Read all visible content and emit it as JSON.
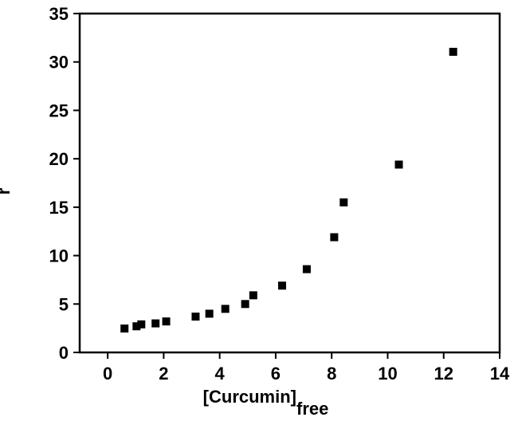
{
  "chart_data": {
    "type": "scatter",
    "xlabel": "[Curcumin]",
    "xlabel_subscript": "free",
    "ylabel": "r",
    "x": [
      0.6,
      1.03,
      1.2,
      1.71,
      2.09,
      3.14,
      3.63,
      4.2,
      4.91,
      5.2,
      6.23,
      7.11,
      8.09,
      8.43,
      10.4,
      12.34
    ],
    "series": [
      {
        "color": "#000000",
        "values": [
          2.47,
          2.7,
          2.9,
          3.0,
          3.2,
          3.7,
          4.0,
          4.5,
          5.0,
          5.9,
          6.9,
          8.6,
          11.9,
          15.5,
          19.4,
          31.05
        ]
      }
    ],
    "xlim": [
      -1,
      14
    ],
    "xticks": [
      0,
      2,
      4,
      6,
      8,
      10,
      12,
      14
    ],
    "ylim": [
      0,
      35
    ],
    "yticks": [
      0,
      5,
      10,
      15,
      20,
      25,
      30,
      35
    ]
  }
}
